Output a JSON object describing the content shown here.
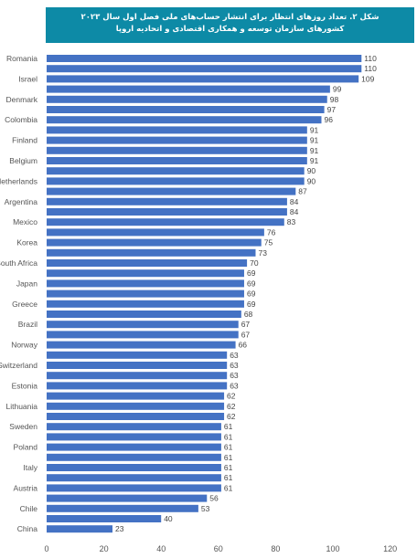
{
  "title": {
    "line1": "شکل ۲. تعداد روزهای انتظار برای انتشار حساب‌های ملی فصل اول سال ۲۰۲۳",
    "line2": "کشورهای سازمان توسعه و همکاری اقتصادی و اتحادیه اروپا"
  },
  "colors": {
    "bar": "#4472c4",
    "title_bg": "#0d8aa6"
  },
  "chart_data": {
    "type": "bar",
    "orientation": "horizontal",
    "xlim": [
      0,
      120
    ],
    "ticks": [
      0,
      20,
      40,
      60,
      80,
      100,
      120
    ],
    "grid": false,
    "bars": [
      {
        "label": "Romania",
        "value": 110
      },
      {
        "label": "",
        "value": 110
      },
      {
        "label": "Israel",
        "value": 109
      },
      {
        "label": "",
        "value": 99
      },
      {
        "label": "Denmark",
        "value": 98
      },
      {
        "label": "",
        "value": 97
      },
      {
        "label": "Colombia",
        "value": 96
      },
      {
        "label": "",
        "value": 91
      },
      {
        "label": "Finland",
        "value": 91
      },
      {
        "label": "",
        "value": 91
      },
      {
        "label": "Belgium",
        "value": 91
      },
      {
        "label": "",
        "value": 90
      },
      {
        "label": "Netherlands",
        "value": 90
      },
      {
        "label": "",
        "value": 87
      },
      {
        "label": "Argentina",
        "value": 84
      },
      {
        "label": "",
        "value": 84
      },
      {
        "label": "Mexico",
        "value": 83
      },
      {
        "label": "",
        "value": 76
      },
      {
        "label": "Korea",
        "value": 75
      },
      {
        "label": "",
        "value": 73
      },
      {
        "label": "South Africa",
        "value": 70
      },
      {
        "label": "",
        "value": 69
      },
      {
        "label": "Japan",
        "value": 69
      },
      {
        "label": "",
        "value": 69
      },
      {
        "label": "Greece",
        "value": 69
      },
      {
        "label": "",
        "value": 68
      },
      {
        "label": "Brazil",
        "value": 67
      },
      {
        "label": "",
        "value": 67
      },
      {
        "label": "Norway",
        "value": 66
      },
      {
        "label": "",
        "value": 63
      },
      {
        "label": "Switzerland",
        "value": 63
      },
      {
        "label": "",
        "value": 63
      },
      {
        "label": "Estonia",
        "value": 63
      },
      {
        "label": "",
        "value": 62
      },
      {
        "label": "Lithuania",
        "value": 62
      },
      {
        "label": "",
        "value": 62
      },
      {
        "label": "Sweden",
        "value": 61
      },
      {
        "label": "",
        "value": 61
      },
      {
        "label": "Poland",
        "value": 61
      },
      {
        "label": "",
        "value": 61
      },
      {
        "label": "Italy",
        "value": 61
      },
      {
        "label": "",
        "value": 61
      },
      {
        "label": "Austria",
        "value": 61
      },
      {
        "label": "",
        "value": 56
      },
      {
        "label": "Chile",
        "value": 53
      },
      {
        "label": "",
        "value": 40
      },
      {
        "label": "China",
        "value": 23
      }
    ]
  }
}
